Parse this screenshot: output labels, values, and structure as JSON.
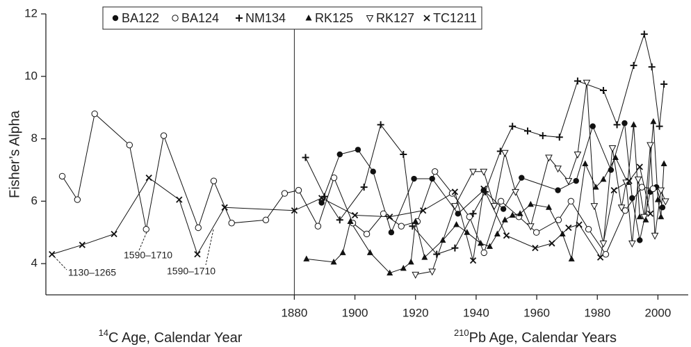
{
  "chart_data": {
    "type": "line",
    "y_label": "Fisher’s Alpha",
    "x_label_left": {
      "sup": "14",
      "text": "C Age, Calendar Year"
    },
    "x_label_right": {
      "sup": "210",
      "text": "Pb Age, Calendar Years"
    },
    "annotations": [
      "1130–1265",
      "1590–1710",
      "1590–1710"
    ],
    "divider_x": 1880,
    "xlim": [
      1798,
      2010
    ],
    "xticks": [
      1880,
      1900,
      1920,
      1940,
      1960,
      1980,
      2000
    ],
    "ylim": [
      3,
      12
    ],
    "yticks": [
      4,
      6,
      8,
      10,
      12
    ],
    "series": [
      {
        "name": "BA122",
        "marker": "filled-circle",
        "color": "#111111",
        "x": [
          1889,
          1895,
          1901,
          1906,
          1912,
          1919.5,
          1925.5,
          1934,
          1942.5,
          1949,
          1955,
          1967,
          1973,
          1978.5,
          1984.5,
          1989,
          1991.5,
          1994,
          1997.5,
          1999.5,
          2001.5
        ],
        "values": [
          5.95,
          7.5,
          7.65,
          6.95,
          5.0,
          6.72,
          6.72,
          5.6,
          6.35,
          5.75,
          6.75,
          6.35,
          6.65,
          8.4,
          7.0,
          8.5,
          6.1,
          4.75,
          6.3,
          6.45,
          5.8
        ]
      },
      {
        "name": "BA124",
        "marker": "open-circle",
        "color": "#111111",
        "x": [
          1803.4,
          1808.4,
          1814.1,
          1825.6,
          1831.1,
          1836.9,
          1848.3,
          1853.4,
          1859.3,
          1870.6,
          1876.8,
          1881.4,
          1887.8,
          1893.1,
          1899.3,
          1903.9,
          1909.4,
          1915.3,
          1920.6,
          1926.4,
          1932.1,
          1937.8,
          1942.6,
          1948.2,
          1954.1,
          1959.9,
          1967.2,
          1971.3,
          1977.1,
          1982.8,
          1989.2,
          1994.7,
          1998.4
        ],
        "values": [
          6.8,
          6.05,
          8.8,
          7.8,
          5.1,
          8.1,
          5.15,
          6.65,
          5.3,
          5.4,
          6.25,
          6.35,
          5.2,
          6.75,
          5.3,
          4.95,
          5.6,
          5.2,
          5.35,
          6.95,
          6.25,
          5.5,
          4.35,
          6.0,
          5.5,
          5.0,
          5.4,
          6.0,
          5.1,
          4.3,
          5.7,
          6.45,
          6.4
        ]
      },
      {
        "name": "NM134",
        "marker": "plus",
        "color": "#111111",
        "x": [
          1883.7,
          1890,
          1895,
          1903,
          1908.5,
          1916,
          1919,
          1927,
          1933,
          1939,
          1943,
          1948,
          1952,
          1957,
          1962,
          1967.5,
          1973.5,
          1982,
          1986.5,
          1992,
          1995.5,
          1998,
          2000.5,
          2002
        ],
        "values": [
          7.4,
          6.15,
          5.4,
          6.45,
          8.45,
          7.5,
          5.2,
          4.3,
          4.5,
          5.6,
          6.3,
          7.6,
          8.4,
          8.25,
          8.1,
          8.05,
          9.85,
          9.55,
          8.45,
          10.35,
          11.35,
          10.3,
          8.4,
          9.75
        ]
      },
      {
        "name": "RK125",
        "marker": "filled-triangle",
        "color": "#111111",
        "x": [
          1884,
          1893,
          1896,
          1898.5,
          1905,
          1911.5,
          1916,
          1918.5,
          1920,
          1923,
          1929,
          1933.5,
          1937,
          1941.5,
          1944.5,
          1947,
          1949.5,
          1952,
          1954.5,
          1958,
          1964,
          1968.5,
          1971.5,
          1976,
          1979.5,
          1982,
          1986,
          1990,
          1992,
          1994,
          1996,
          1998.5,
          2000,
          2001,
          2002
        ],
        "values": [
          4.15,
          4.05,
          4.35,
          5.35,
          4.35,
          3.7,
          3.85,
          4.05,
          5.35,
          4.2,
          4.75,
          5.25,
          5.0,
          4.65,
          4.55,
          4.95,
          5.4,
          5.55,
          5.6,
          5.9,
          5.8,
          4.95,
          4.15,
          7.2,
          6.45,
          6.7,
          7.4,
          6.6,
          8.45,
          5.5,
          5.4,
          8.55,
          6.05,
          5.5,
          7.2
        ]
      },
      {
        "name": "RK127",
        "marker": "open-triangle-down",
        "color": "#111111",
        "x": [
          1920,
          1925.5,
          1933,
          1939,
          1942.5,
          1946,
          1949.5,
          1953,
          1958,
          1964,
          1967,
          1970.5,
          1973.5,
          1976.5,
          1979,
          1982,
          1985,
          1988,
          1989.5,
          1991.5,
          1993.5,
          1995.5,
          1997.5,
          1999,
          2001,
          2002.5
        ],
        "values": [
          3.65,
          3.75,
          5.85,
          6.95,
          6.95,
          5.85,
          7.55,
          6.3,
          5.2,
          7.4,
          7.05,
          6.65,
          7.5,
          9.8,
          5.85,
          4.65,
          7.7,
          5.8,
          6.6,
          4.65,
          6.7,
          5.5,
          7.8,
          4.9,
          6.35,
          6.0
        ]
      },
      {
        "name": "TC1211",
        "marker": "cross",
        "color": "#111111",
        "x": [
          1800,
          1810,
          1820.5,
          1832,
          1842,
          1848,
          1857,
          1880,
          1889,
          1900,
          1911.5,
          1922.5,
          1933,
          1939,
          1942.5,
          1950,
          1959.5,
          1965,
          1970.5,
          1974,
          1981,
          1985.5,
          1990.5,
          1994,
          1997.5
        ],
        "values": [
          4.3,
          4.6,
          4.95,
          6.75,
          6.05,
          4.3,
          5.8,
          5.7,
          6.1,
          5.55,
          5.5,
          5.7,
          6.3,
          4.1,
          6.4,
          4.9,
          4.5,
          4.65,
          5.15,
          5.25,
          4.2,
          6.35,
          6.65,
          7.1,
          5.6
        ]
      }
    ]
  }
}
